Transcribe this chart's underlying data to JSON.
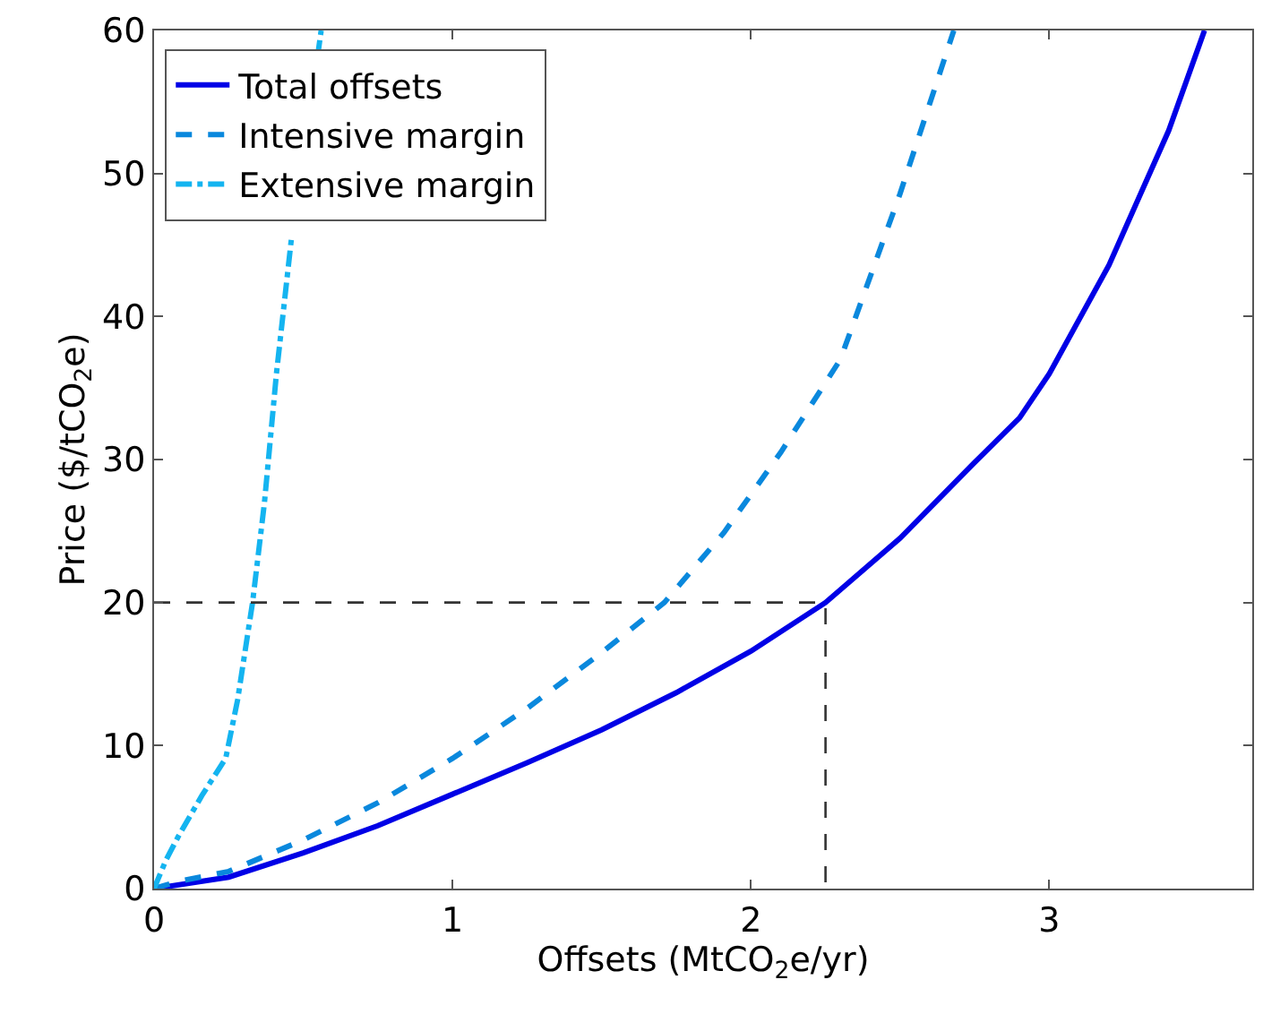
{
  "chart_data": {
    "type": "line",
    "xlabel": "Offsets (MtCO$_{2}$e/yr)",
    "ylabel": "Price ($/tCO$_{2}$e)",
    "xlim": [
      0,
      3.68
    ],
    "xticks": [
      0,
      1,
      2,
      3
    ],
    "ylim": [
      0,
      60
    ],
    "yticks": [
      0,
      10,
      20,
      30,
      40,
      50,
      60
    ],
    "legend": "top left",
    "series": [
      {
        "name": "Total offsets",
        "color": "#0000e6",
        "line_style": "solid",
        "x": [
          0,
          0.25,
          0.5,
          0.75,
          1,
          1.25,
          1.5,
          1.75,
          2,
          2.25,
          2.5,
          2.75,
          2.9,
          3.0,
          3.2,
          3.4,
          3.52
        ],
        "values": [
          0,
          0.8,
          2.5,
          4.4,
          6.6,
          8.8,
          11.1,
          13.7,
          16.6,
          20,
          24.5,
          29.8,
          32.9,
          36,
          43.6,
          53,
          60
        ]
      },
      {
        "name": "Intensive margin",
        "color": "#0a88dd",
        "line_style": "dashed",
        "x": [
          0,
          0.08,
          0.25,
          0.5,
          0.75,
          1,
          1.25,
          1.5,
          1.71,
          1.91,
          2.1,
          2.3,
          2.5,
          2.68
        ],
        "values": [
          0,
          0.5,
          1.2,
          3.4,
          6,
          9.1,
          12.6,
          16.5,
          20,
          24.9,
          30.5,
          37,
          48.6,
          60
        ]
      },
      {
        "name": "Extensive margin",
        "color": "#14b4f0",
        "line_style": "dashdot",
        "x": [
          0,
          0.04,
          0.08,
          0.16,
          0.24,
          0.28,
          0.33,
          0.37,
          0.41,
          0.46,
          0.5,
          0.548,
          0.56
        ],
        "values": [
          0,
          2,
          3.6,
          6.5,
          9.1,
          13.2,
          20,
          27,
          36,
          45.4,
          null,
          58.2,
          60
        ]
      },
      {
        "color": "#333333",
        "line_style": "dashed",
        "x": [
          0,
          2.25,
          2.25
        ],
        "values": [
          20,
          20,
          0
        ]
      }
    ]
  }
}
